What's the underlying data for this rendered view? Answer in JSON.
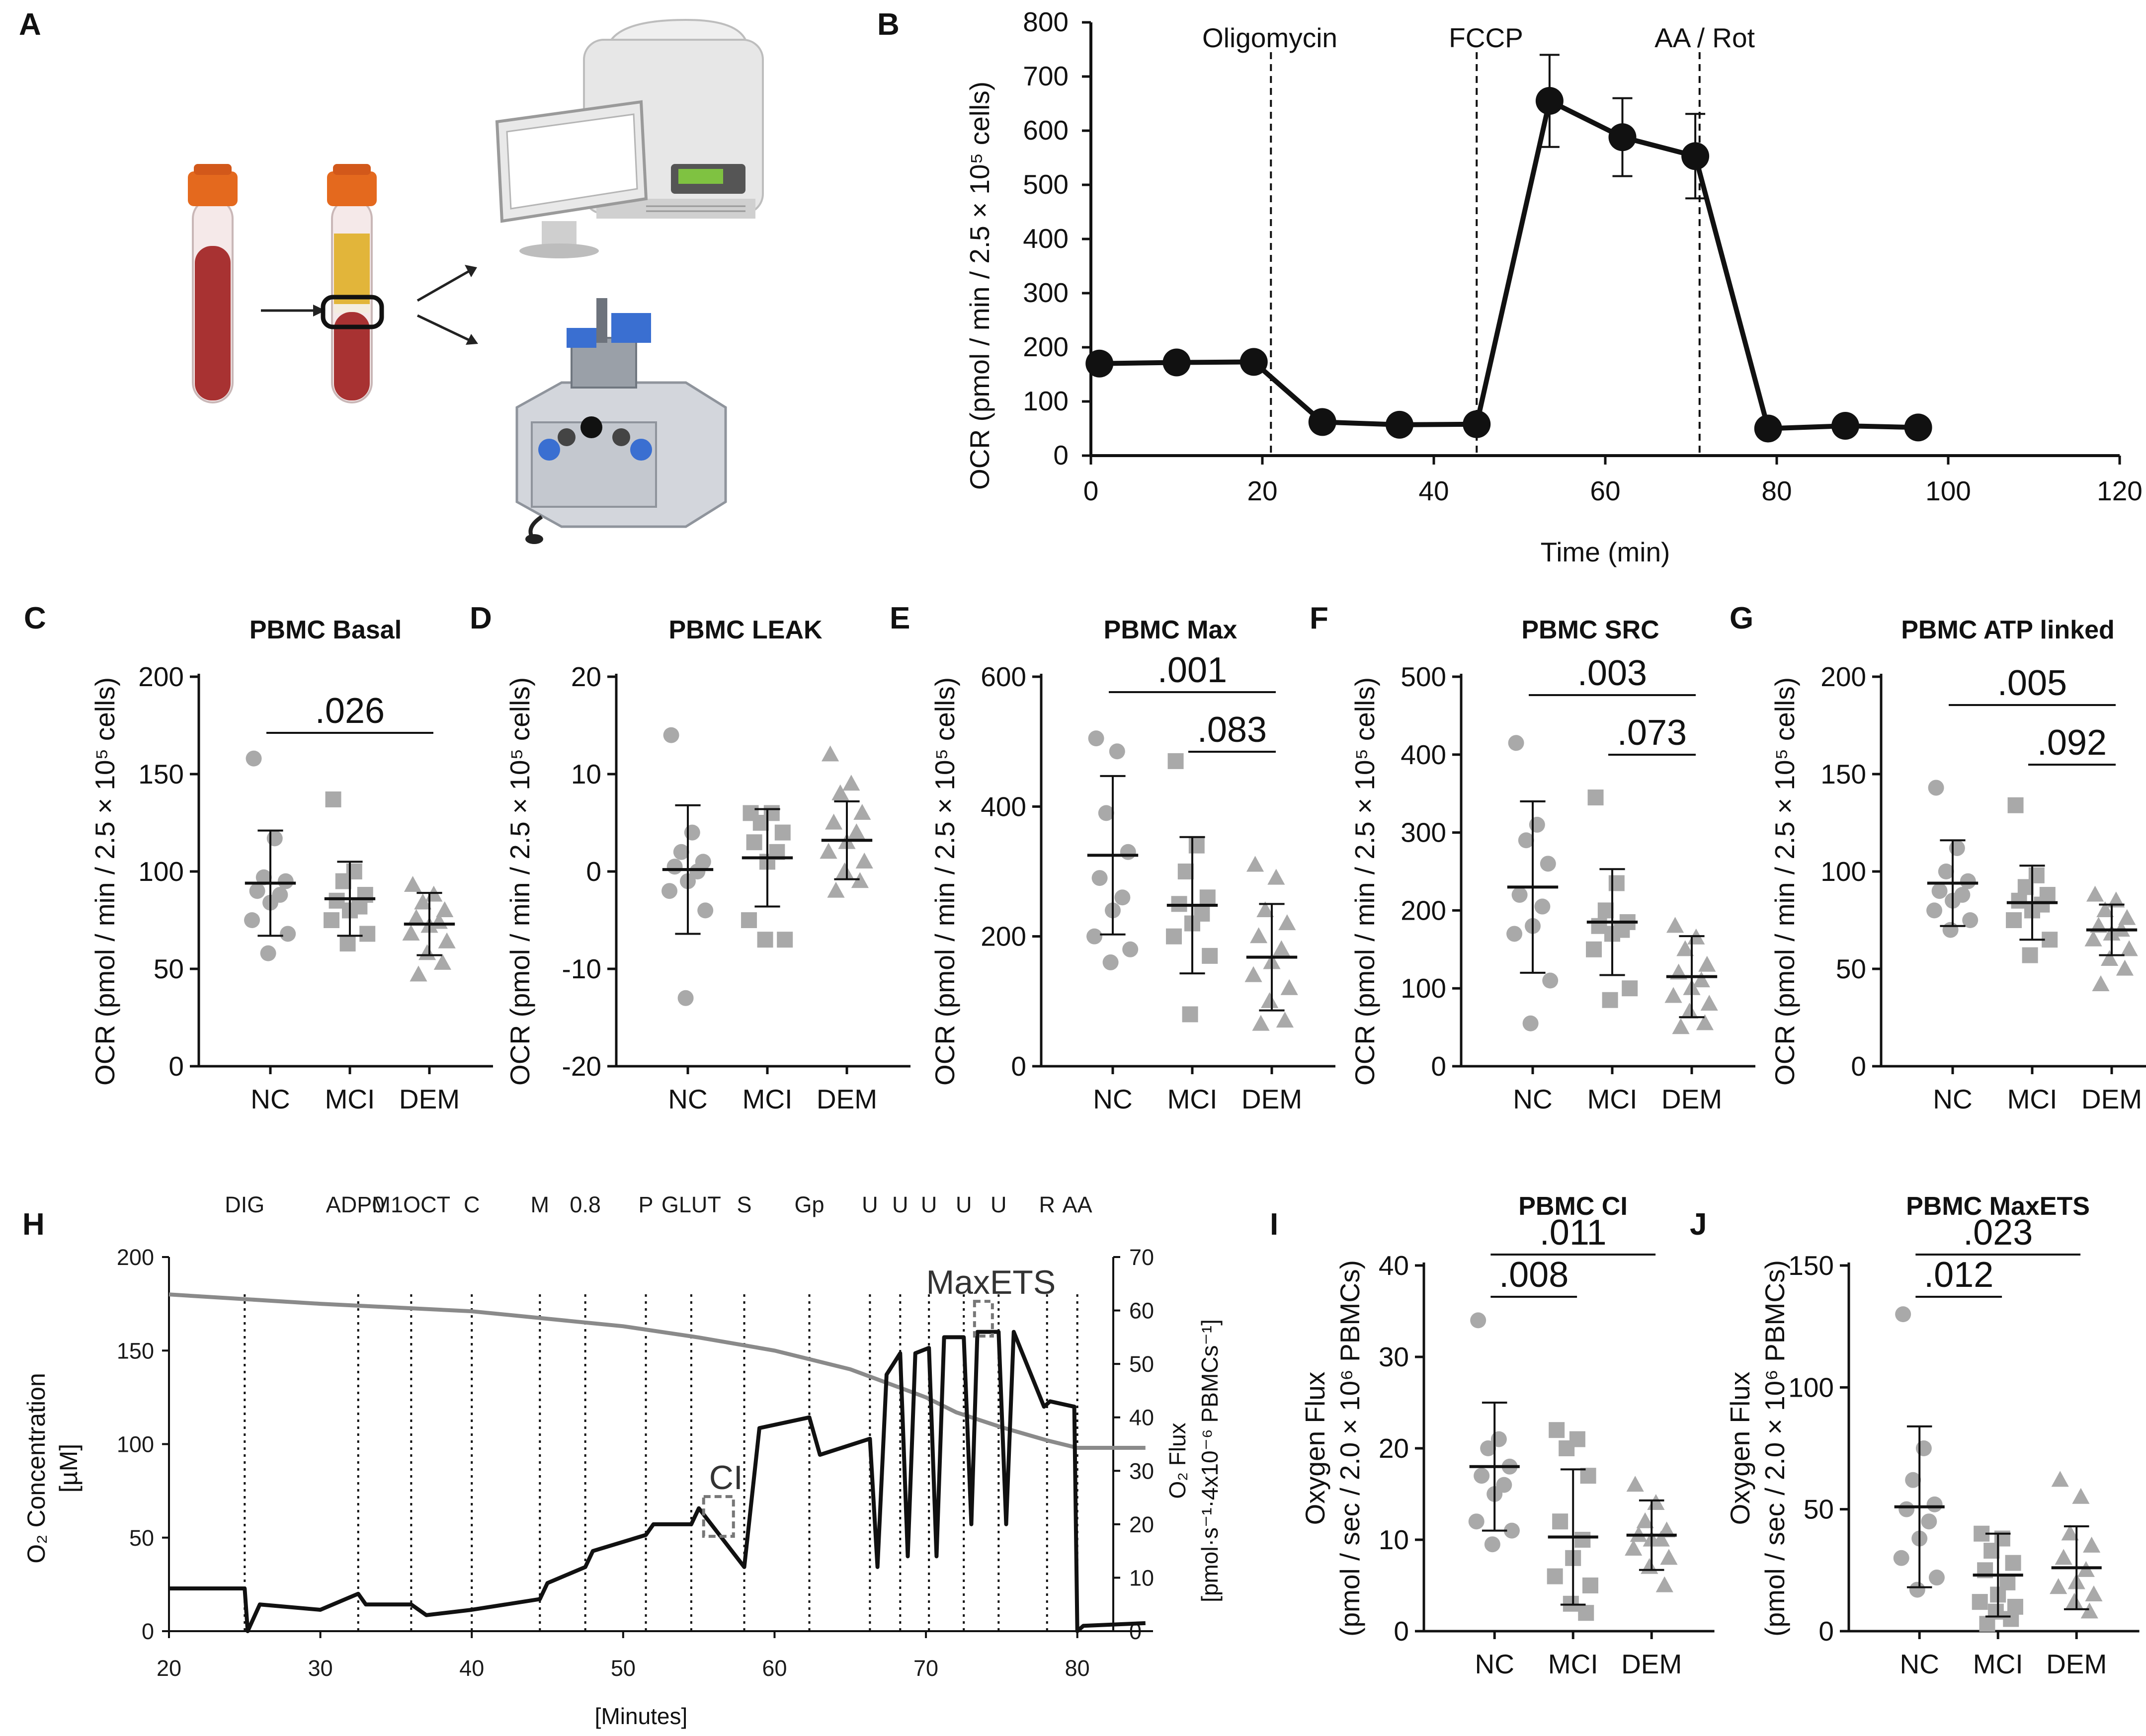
{
  "panel_labels": {
    "A": "A",
    "B": "B",
    "C": "C",
    "D": "D",
    "E": "E",
    "F": "F",
    "G": "G",
    "H": "H",
    "I": "I",
    "J": "J"
  },
  "icons": {
    "tube_whole_blood": "blood-tube-icon",
    "tube_separated": "separated-tube-icon",
    "seahorse_analyzer": "seahorse-analyzer-icon",
    "oroboros_respirometer": "oroboros-respirometer-icon"
  },
  "colors": {
    "line": "#111111",
    "grey_points": "#a9a9a9",
    "o2_trace": "#8a8a8a",
    "blood": "#a83232",
    "plasma": "#e2b53a",
    "cap": "#e4691e"
  },
  "chart_data": [
    {
      "id": "B",
      "type": "line",
      "xlabel": "Time (min)",
      "ylabel": "OCR (pmol / min / 2.5 × 10⁵ cells)",
      "xlim": [
        0,
        120
      ],
      "ylim": [
        0,
        800
      ],
      "xticks": [
        0,
        20,
        40,
        60,
        80,
        100,
        120
      ],
      "yticks": [
        0,
        100,
        200,
        300,
        400,
        500,
        600,
        700,
        800
      ],
      "x": [
        1,
        10,
        19,
        27,
        36,
        45,
        53.5,
        62,
        70.5,
        79,
        88,
        96.5
      ],
      "y": [
        170,
        172,
        173,
        62,
        57,
        58,
        655,
        588,
        553,
        50,
        55,
        52
      ],
      "err": [
        0,
        0,
        0,
        0,
        0,
        0,
        85,
        72,
        78,
        0,
        0,
        0
      ],
      "injections": [
        {
          "label": "Oligomycin",
          "x": 21
        },
        {
          "label": "FCCP",
          "x": 45
        },
        {
          "label": "AA / Rot",
          "x": 71
        }
      ]
    },
    {
      "id": "C",
      "type": "scatter",
      "title": "PBMC Basal",
      "ylabel": "OCR (pmol / min / 2.5 × 10⁵ cells)",
      "categories": [
        "NC",
        "MCI",
        "DEM"
      ],
      "ylim": [
        0,
        200
      ],
      "yticks": [
        0,
        50,
        100,
        150,
        200
      ],
      "points": [
        [
          158,
          117,
          97,
          95,
          90,
          88,
          84,
          75,
          68,
          58
        ],
        [
          137,
          100,
          95,
          88,
          85,
          82,
          80,
          75,
          68,
          63
        ],
        [
          93,
          88,
          84,
          80,
          76,
          74,
          72,
          68,
          64,
          58,
          53,
          47
        ]
      ],
      "mean": [
        94,
        86,
        73
      ],
      "sd": [
        27,
        19,
        16
      ],
      "comparisons": [
        {
          "text": ".026",
          "from": 0,
          "to": 2
        }
      ]
    },
    {
      "id": "D",
      "type": "scatter",
      "title": "PBMC LEAK",
      "ylabel": "OCR (pmol / min / 2.5 × 10⁵ cells)",
      "categories": [
        "NC",
        "MCI",
        "DEM"
      ],
      "ylim": [
        -20,
        20
      ],
      "yticks": [
        -20,
        -10,
        0,
        10,
        20
      ],
      "points": [
        [
          14,
          4,
          2,
          1,
          0.5,
          0,
          -1,
          -2,
          -4,
          -13
        ],
        [
          6,
          6,
          5,
          4,
          3,
          2,
          1,
          -5,
          -7,
          -7
        ],
        [
          12,
          9,
          8,
          6,
          5,
          4,
          3,
          2,
          1,
          0,
          -1,
          -2
        ]
      ],
      "mean": [
        0.2,
        1.4,
        3.2
      ],
      "sd": [
        6.6,
        5,
        4
      ],
      "comparisons": []
    },
    {
      "id": "E",
      "type": "scatter",
      "title": "PBMC Max",
      "ylabel": "OCR (pmol / min / 2.5 × 10⁵ cells)",
      "categories": [
        "NC",
        "MCI",
        "DEM"
      ],
      "ylim": [
        0,
        600
      ],
      "yticks": [
        0,
        200,
        400,
        600
      ],
      "points": [
        [
          505,
          485,
          390,
          330,
          290,
          260,
          240,
          200,
          180,
          160
        ],
        [
          470,
          340,
          300,
          260,
          250,
          235,
          220,
          200,
          170,
          80
        ],
        [
          310,
          290,
          240,
          220,
          200,
          180,
          160,
          140,
          120,
          100,
          70,
          65
        ]
      ],
      "mean": [
        325,
        248,
        168
      ],
      "sd": [
        122,
        105,
        82
      ],
      "comparisons": [
        {
          "text": ".001",
          "from": 0,
          "to": 2
        },
        {
          "text": ".083",
          "from": 1,
          "to": 2
        }
      ]
    },
    {
      "id": "F",
      "type": "scatter",
      "title": "PBMC SRC",
      "ylabel": "OCR (pmol / min / 2.5 × 10⁵ cells)",
      "categories": [
        "NC",
        "MCI",
        "DEM"
      ],
      "ylim": [
        0,
        500
      ],
      "yticks": [
        0,
        100,
        200,
        300,
        400,
        500
      ],
      "points": [
        [
          415,
          310,
          290,
          260,
          220,
          205,
          180,
          170,
          110,
          55
        ],
        [
          345,
          235,
          200,
          185,
          180,
          175,
          170,
          150,
          100,
          85
        ],
        [
          180,
          165,
          150,
          130,
          120,
          110,
          100,
          90,
          80,
          70,
          55,
          50
        ]
      ],
      "mean": [
        230,
        185,
        115
      ],
      "sd": [
        110,
        68,
        52
      ],
      "comparisons": [
        {
          "text": ".003",
          "from": 0,
          "to": 2
        },
        {
          "text": ".073",
          "from": 1,
          "to": 2
        }
      ]
    },
    {
      "id": "G",
      "type": "scatter",
      "title": "PBMC ATP linked",
      "ylabel": "OCR (pmol / min / 2.5 × 10⁵ cells)",
      "categories": [
        "NC",
        "MCI",
        "DEM"
      ],
      "ylim": [
        0,
        200
      ],
      "yticks": [
        0,
        50,
        100,
        150,
        200
      ],
      "points": [
        [
          143,
          112,
          100,
          95,
          90,
          88,
          85,
          80,
          75,
          70
        ],
        [
          134,
          98,
          92,
          88,
          85,
          83,
          80,
          75,
          65,
          57
        ],
        [
          88,
          85,
          80,
          76,
          72,
          70,
          68,
          65,
          60,
          55,
          50,
          42
        ]
      ],
      "mean": [
        94,
        84,
        70
      ],
      "sd": [
        22,
        19,
        13
      ],
      "comparisons": [
        {
          "text": ".005",
          "from": 0,
          "to": 2
        },
        {
          "text": ".092",
          "from": 1,
          "to": 2
        }
      ]
    },
    {
      "id": "H",
      "type": "line",
      "xlabel": "[Minutes]",
      "ylabel_left": "O₂ Concentration",
      "ylabel_left_unit": "[µM]",
      "ylabel_right": "O₂ Flux",
      "ylabel_right_unit": "[pmol·s⁻¹·4x10⁻⁶ PBMCs⁻¹]",
      "xlim": [
        20,
        85
      ],
      "xticks": [
        20,
        30,
        40,
        50,
        60,
        70,
        80
      ],
      "ylim_left": [
        0,
        200
      ],
      "yticks_left": [
        0,
        50,
        100,
        150,
        200
      ],
      "ylim_right": [
        0,
        70
      ],
      "yticks_right": [
        0,
        10,
        20,
        30,
        40,
        50,
        60,
        70
      ],
      "events": [
        {
          "label": "DIG",
          "x": 25
        },
        {
          "label": "ADPM",
          "x": 32.5
        },
        {
          "label": "0.1OCT",
          "x": 36
        },
        {
          "label": "C",
          "x": 40
        },
        {
          "label": "M",
          "x": 44.5
        },
        {
          "label": "0.8",
          "x": 47.5
        },
        {
          "label": "P",
          "x": 51.5
        },
        {
          "label": "GLUT",
          "x": 54.5
        },
        {
          "label": "S",
          "x": 58
        },
        {
          "label": "Gp",
          "x": 62.3
        },
        {
          "label": "U",
          "x": 66.3
        },
        {
          "label": "U",
          "x": 68.3
        },
        {
          "label": "U",
          "x": 70.2
        },
        {
          "label": "U",
          "x": 72.5
        },
        {
          "label": "U",
          "x": 74.8
        },
        {
          "label": "R",
          "x": 78
        },
        {
          "label": "AA",
          "x": 80
        }
      ],
      "o2_concentration": {
        "x": [
          20,
          30,
          40,
          50,
          55,
          60,
          65,
          70,
          72,
          75,
          78,
          80,
          84.5
        ],
        "y": [
          180,
          175,
          171,
          163,
          157,
          150,
          140,
          125,
          117,
          109,
          102,
          98,
          98
        ]
      },
      "o2_flux": {
        "x": [
          20,
          25,
          25.2,
          26,
          30,
          32.5,
          33,
          36,
          37,
          40,
          44.5,
          45,
          47.5,
          48,
          51.5,
          52,
          54.5,
          55,
          58,
          59,
          62.3,
          63,
          66.3,
          66.8,
          67.4,
          68.3,
          68.8,
          69.3,
          70.2,
          70.7,
          71.2,
          72.5,
          73,
          73.4,
          74.8,
          75.3,
          75.8,
          77.8,
          78.2,
          79.8,
          80,
          80.4,
          84.5
        ],
        "y": [
          8,
          8,
          0,
          5,
          4,
          7,
          5,
          5,
          3,
          4,
          6,
          9,
          12,
          15,
          18,
          20,
          20,
          23,
          12,
          38,
          40,
          33,
          36,
          12,
          48,
          52,
          14,
          52,
          53,
          14,
          55,
          55,
          20,
          56,
          56,
          20,
          56,
          42,
          43,
          42,
          0,
          1,
          1.5
        ]
      },
      "boxes": [
        {
          "label": "CI",
          "x": 56.5
        },
        {
          "label": "MaxETS",
          "x": 74
        }
      ]
    },
    {
      "id": "I",
      "type": "scatter",
      "title": "PBMC CI",
      "ylabel": "Oxygen Flux",
      "ylabel2": "(pmol / sec / 2.0 × 10⁶ PBMCs)",
      "categories": [
        "NC",
        "MCI",
        "DEM"
      ],
      "ylim": [
        0,
        40
      ],
      "yticks": [
        0,
        10,
        20,
        30,
        40
      ],
      "points": [
        [
          34,
          21,
          20,
          18,
          17,
          16,
          15,
          12,
          11,
          9.5
        ],
        [
          22,
          21,
          20,
          17,
          12,
          10,
          8,
          6,
          5,
          3,
          2
        ],
        [
          16,
          14,
          12,
          11,
          10.5,
          10,
          10,
          9,
          8,
          7,
          5
        ]
      ],
      "mean": [
        18,
        10.3,
        10.5
      ],
      "sd": [
        7,
        7.4,
        3.8
      ],
      "comparisons": [
        {
          "text": ".011",
          "from": 0,
          "to": 2
        },
        {
          "text": ".008",
          "from": 0,
          "to": 1
        }
      ]
    },
    {
      "id": "J",
      "type": "scatter",
      "title": "PBMC MaxETS",
      "ylabel": "Oxygen Flux",
      "ylabel2": "(pmol / sec / 2.0 × 10⁶ PBMCs)",
      "categories": [
        "NC",
        "MCI",
        "DEM"
      ],
      "ylim": [
        0,
        150
      ],
      "yticks": [
        0,
        50,
        100,
        150
      ],
      "points": [
        [
          130,
          75,
          62,
          52,
          50,
          45,
          38,
          30,
          22,
          17
        ],
        [
          40,
          38,
          33,
          28,
          25,
          20,
          15,
          12,
          10,
          8,
          5,
          3
        ],
        [
          62,
          55,
          40,
          35,
          30,
          25,
          20,
          18,
          15,
          12,
          8
        ]
      ],
      "mean": [
        51,
        23,
        26
      ],
      "sd": [
        33,
        17,
        17
      ],
      "comparisons": [
        {
          "text": ".023",
          "from": 0,
          "to": 2
        },
        {
          "text": ".012",
          "from": 0,
          "to": 1
        }
      ]
    }
  ]
}
